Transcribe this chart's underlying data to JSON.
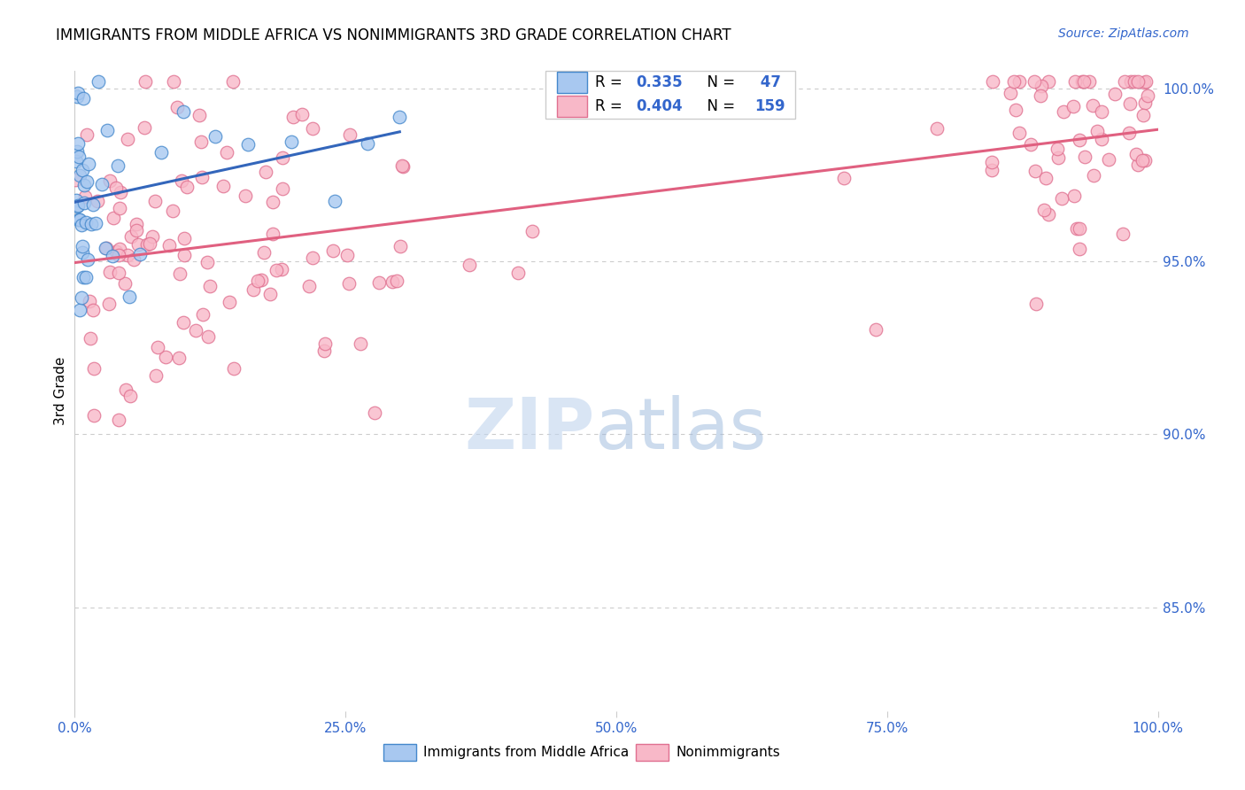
{
  "title": "IMMIGRANTS FROM MIDDLE AFRICA VS NONIMMIGRANTS 3RD GRADE CORRELATION CHART",
  "source": "Source: ZipAtlas.com",
  "ylabel": "3rd Grade",
  "blue_R": 0.335,
  "blue_N": 47,
  "pink_R": 0.404,
  "pink_N": 159,
  "blue_face_color": "#A8C8F0",
  "blue_edge_color": "#4488CC",
  "pink_face_color": "#F8B8C8",
  "pink_edge_color": "#E07090",
  "blue_line_color": "#3366BB",
  "pink_line_color": "#E06080",
  "background_color": "#FFFFFF",
  "grid_color": "#CCCCCC",
  "axis_color": "#AAAAAA",
  "tick_color": "#3366CC",
  "xlim": [
    0.0,
    1.0
  ],
  "ylim": [
    0.82,
    1.005
  ],
  "yticks": [
    0.85,
    0.9,
    0.95,
    1.0
  ],
  "ytick_labels": [
    "85.0%",
    "90.0%",
    "95.0%",
    "100.0%"
  ],
  "xticks": [
    0.0,
    0.25,
    0.5,
    0.75,
    1.0
  ],
  "xtick_labels": [
    "0.0%",
    "25.0%",
    "50.0%",
    "75.0%",
    "100.0%"
  ],
  "legend_label_blue": "Immigrants from Middle Africa",
  "legend_label_pink": "Nonimmigrants",
  "watermark_zip_color": "#C0D4EE",
  "watermark_atlas_color": "#9BB8DC"
}
